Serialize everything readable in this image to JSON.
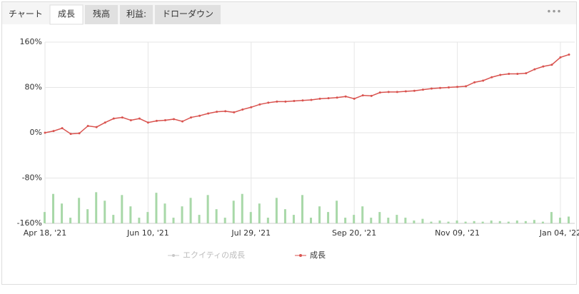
{
  "tabs": [
    "チャート",
    "成長",
    "残高",
    "利益:",
    "ドローダウン"
  ],
  "active_tab": 1,
  "menu": "•••",
  "chart_data": {
    "type": "line",
    "categories": [
      "Apr 18, '21",
      null,
      null,
      null,
      null,
      null,
      null,
      null,
      null,
      null,
      null,
      null,
      "Jun 10, '21",
      null,
      null,
      null,
      null,
      null,
      null,
      null,
      null,
      null,
      null,
      null,
      "Jul 29, '21",
      null,
      null,
      null,
      null,
      null,
      null,
      null,
      null,
      null,
      null,
      null,
      "Sep 20, '21",
      null,
      null,
      null,
      null,
      null,
      null,
      null,
      null,
      null,
      null,
      null,
      "Nov 09, '21",
      null,
      null,
      null,
      null,
      null,
      null,
      null,
      null,
      null,
      null,
      null,
      "Jan 04, '22",
      null
    ],
    "ylim": [
      -160,
      160
    ],
    "yticks": [
      {
        "value": 160,
        "label": "160%"
      },
      {
        "value": 80,
        "label": "80%"
      },
      {
        "value": 0,
        "label": "0%"
      },
      {
        "value": -80,
        "label": "-80%"
      },
      {
        "value": -160,
        "label": "-160%"
      }
    ],
    "grid": true,
    "series": [
      {
        "name": "エクイティの成長",
        "color": "#c8c8c8",
        "visible": false,
        "values": [
          null,
          null,
          null,
          null,
          null,
          null,
          null,
          null,
          null,
          null,
          null,
          null,
          null,
          null,
          null,
          null,
          null,
          null,
          null,
          null,
          null,
          null,
          null,
          null,
          null,
          null,
          null,
          null,
          null,
          null,
          null,
          null,
          null,
          null,
          null,
          null,
          null,
          null,
          null,
          null,
          null,
          null,
          null,
          null,
          null,
          null,
          null,
          null,
          null,
          null,
          null,
          null,
          null,
          null,
          null,
          null,
          null,
          null,
          null,
          null,
          null,
          null
        ]
      },
      {
        "name": "成長",
        "color": "#d9534f",
        "visible": true,
        "values": [
          0,
          3,
          8,
          -2,
          -1,
          12,
          10,
          18,
          25,
          27,
          22,
          25,
          18,
          21,
          22,
          24,
          20,
          27,
          30,
          34,
          37,
          38,
          36,
          41,
          45,
          50,
          53,
          55,
          55,
          56,
          57,
          58,
          60,
          61,
          62,
          64,
          60,
          66,
          65,
          71,
          72,
          72,
          73,
          74,
          76,
          78,
          79,
          80,
          81,
          82,
          89,
          92,
          98,
          102,
          104,
          104,
          105,
          112,
          117,
          120,
          133,
          138
        ]
      },
      {
        "type": "bar",
        "color": "#a8d8a8",
        "values": [
          -140,
          -108,
          -125,
          -150,
          -115,
          -135,
          -105,
          -120,
          -145,
          -110,
          -130,
          -150,
          -140,
          -106,
          -125,
          -150,
          -130,
          -115,
          -145,
          -110,
          -135,
          -150,
          -120,
          -108,
          -140,
          -125,
          -150,
          -115,
          -135,
          -145,
          -110,
          -150,
          -130,
          -140,
          -120,
          -150,
          -145,
          -130,
          -150,
          -140,
          -150,
          -145,
          -150,
          -155,
          -152,
          -157,
          -155,
          -157,
          -155,
          -157,
          -156,
          -157,
          -155,
          -156,
          -157,
          -155,
          -156,
          -154,
          -157,
          -140,
          -150,
          -148
        ]
      }
    ]
  }
}
